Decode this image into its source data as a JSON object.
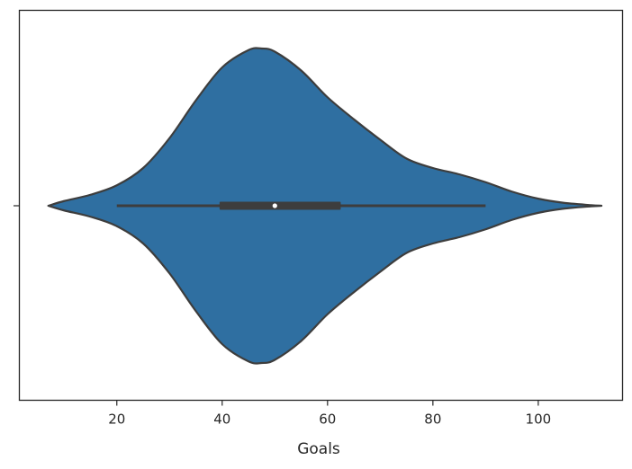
{
  "chart_data": {
    "type": "violin",
    "orientation": "horizontal",
    "title": "",
    "xlabel": "Goals",
    "ylabel": "",
    "xlim": [
      1.5,
      116
    ],
    "x_ticks": [
      20,
      40,
      60,
      80,
      100
    ],
    "x_tick_labels": [
      "20",
      "40",
      "60",
      "80",
      "100"
    ],
    "grid": false,
    "color": "#2f6fa1",
    "edge_color": "#3d3d3d",
    "violin": {
      "density_profile": [
        {
          "x": 7,
          "w": 0.0
        },
        {
          "x": 10,
          "w": 0.03
        },
        {
          "x": 15,
          "w": 0.07
        },
        {
          "x": 20,
          "w": 0.13
        },
        {
          "x": 25,
          "w": 0.24
        },
        {
          "x": 30,
          "w": 0.43
        },
        {
          "x": 35,
          "w": 0.67
        },
        {
          "x": 40,
          "w": 0.88
        },
        {
          "x": 45,
          "w": 0.99
        },
        {
          "x": 47.5,
          "w": 1.0
        },
        {
          "x": 50,
          "w": 0.98
        },
        {
          "x": 55,
          "w": 0.86
        },
        {
          "x": 60,
          "w": 0.69
        },
        {
          "x": 65,
          "w": 0.55
        },
        {
          "x": 70,
          "w": 0.42
        },
        {
          "x": 75,
          "w": 0.3
        },
        {
          "x": 80,
          "w": 0.24
        },
        {
          "x": 85,
          "w": 0.2
        },
        {
          "x": 90,
          "w": 0.15
        },
        {
          "x": 95,
          "w": 0.09
        },
        {
          "x": 100,
          "w": 0.045
        },
        {
          "x": 105,
          "w": 0.018
        },
        {
          "x": 110,
          "w": 0.004
        },
        {
          "x": 112,
          "w": 0.0
        }
      ],
      "whisker_low": 20,
      "whisker_high": 90,
      "q1": 39.5,
      "q3": 62.5,
      "median": 50
    }
  }
}
